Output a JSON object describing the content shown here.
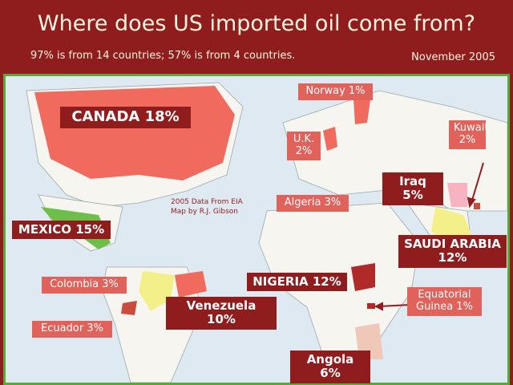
{
  "header": {
    "title": "Where does US imported oil come from?",
    "subtitle": "97% is from 14 countries; 57% is from 4 countries.",
    "date": "November 2005"
  },
  "map": {
    "note": [
      "2005 Data From EIA",
      "Map by R.J. Gibson"
    ],
    "labels": [
      {
        "lines": [
          "CANADA 18%"
        ],
        "style": "major"
      },
      {
        "lines": [
          "Norway 1%"
        ],
        "style": "minor"
      },
      {
        "lines": [
          "U.K. 2%"
        ],
        "style": "minor"
      },
      {
        "lines": [
          "Kuwait",
          "2%"
        ],
        "style": "minor"
      },
      {
        "lines": [
          "Iraq 5%"
        ],
        "style": "major"
      },
      {
        "lines": [
          "Algeria 3%"
        ],
        "style": "minor"
      },
      {
        "lines": [
          "MEXICO 15%"
        ],
        "style": "major"
      },
      {
        "lines": [
          "SAUDI ARABIA",
          "12%"
        ],
        "style": "major"
      },
      {
        "lines": [
          "Colombia 3%"
        ],
        "style": "minor"
      },
      {
        "lines": [
          "NIGERIA 12%"
        ],
        "style": "major"
      },
      {
        "lines": [
          "Venezuela 10%"
        ],
        "style": "major"
      },
      {
        "lines": [
          "Equatorial",
          "Guinea 1%"
        ],
        "style": "minor"
      },
      {
        "lines": [
          "Ecuador 3%"
        ],
        "style": "minor"
      },
      {
        "lines": [
          "Angola 6%"
        ],
        "style": "major"
      }
    ]
  }
}
